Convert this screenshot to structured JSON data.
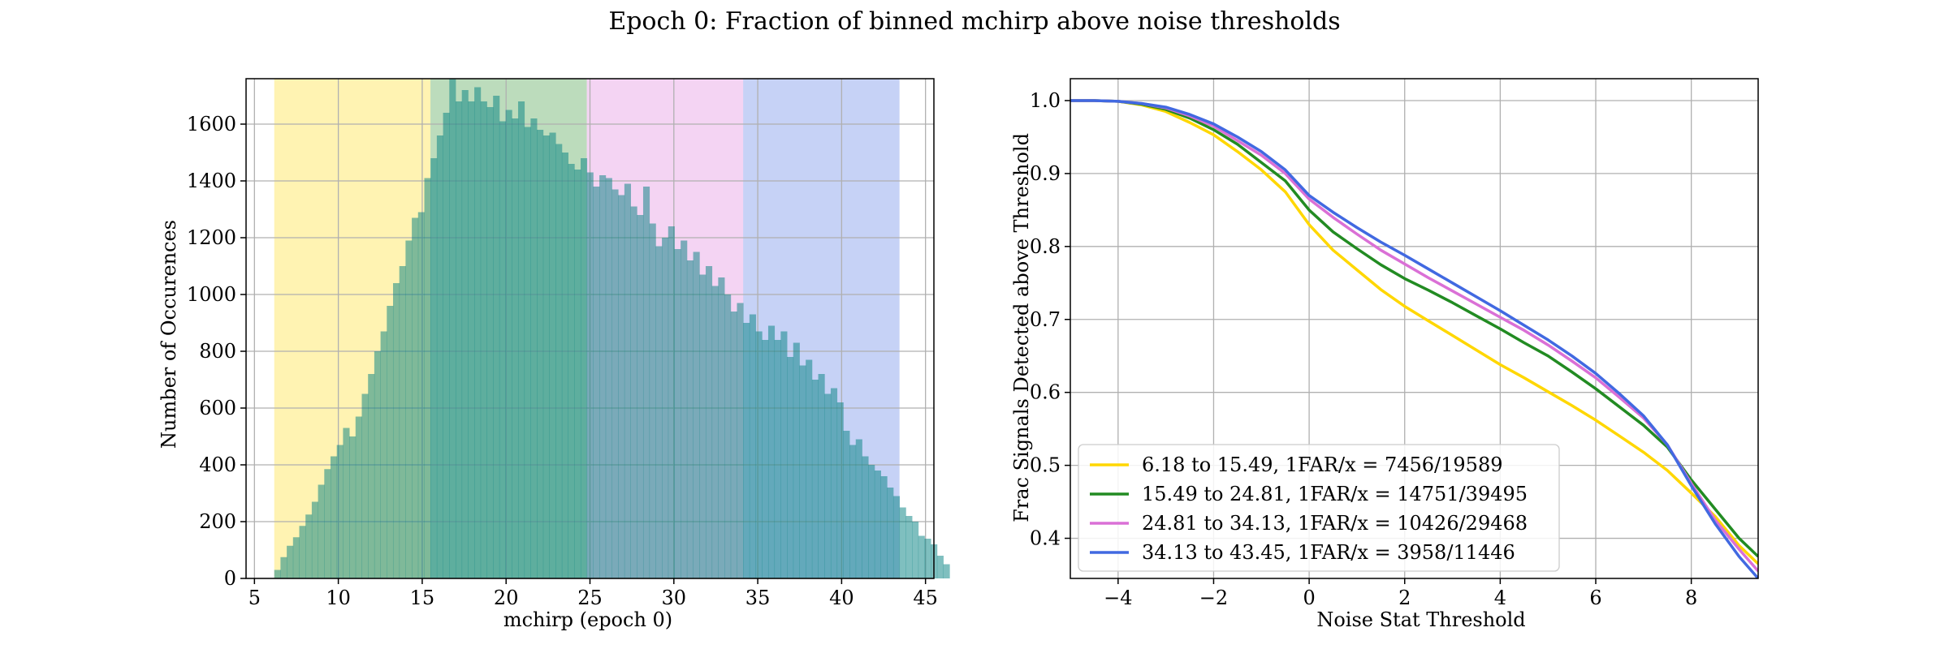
{
  "title": "Epoch 0: Fraction of binned mchirp above noise thresholds",
  "chart_data": [
    {
      "type": "bar",
      "xlabel": "mchirp (epoch 0)",
      "ylabel": "Number of Occurences",
      "xlim": [
        4.5,
        45.5
      ],
      "ylim": [
        0,
        1760
      ],
      "xticks": [
        5,
        10,
        15,
        20,
        25,
        30,
        35,
        40,
        45
      ],
      "yticks": [
        0,
        200,
        400,
        600,
        800,
        1000,
        1200,
        1400,
        1600
      ],
      "grid": true,
      "bin_width": 0.3727,
      "bin_start": 6.18,
      "bands": [
        {
          "from": 6.18,
          "to": 15.49,
          "color": "#ffd700"
        },
        {
          "from": 15.49,
          "to": 24.81,
          "color": "#228b22"
        },
        {
          "from": 24.81,
          "to": 34.13,
          "color": "#da70d6"
        },
        {
          "from": 34.13,
          "to": 43.45,
          "color": "#4169e1"
        }
      ],
      "bar_color": "#008080",
      "values": [
        30,
        75,
        115,
        145,
        185,
        225,
        270,
        330,
        385,
        430,
        470,
        530,
        500,
        570,
        650,
        720,
        800,
        870,
        960,
        1040,
        1100,
        1190,
        1270,
        1290,
        1410,
        1480,
        1560,
        1640,
        1760,
        1680,
        1720,
        1680,
        1730,
        1680,
        1660,
        1700,
        1610,
        1650,
        1620,
        1680,
        1590,
        1620,
        1580,
        1560,
        1570,
        1530,
        1500,
        1460,
        1440,
        1480,
        1430,
        1380,
        1420,
        1410,
        1370,
        1350,
        1390,
        1310,
        1280,
        1380,
        1250,
        1170,
        1200,
        1240,
        1160,
        1190,
        1120,
        1150,
        1070,
        1100,
        1030,
        1060,
        1000,
        940,
        970,
        900,
        930,
        870,
        840,
        890,
        840,
        870,
        780,
        830,
        750,
        770,
        700,
        720,
        650,
        670,
        620,
        520,
        470,
        490,
        430,
        400,
        380,
        360,
        320,
        290,
        250,
        220,
        200,
        150,
        140,
        120,
        80,
        50
      ]
    },
    {
      "type": "line",
      "xlabel": "Noise Stat Threshold",
      "ylabel": "Frac Signals Detected above Threshold",
      "xlim": [
        -5,
        9.4
      ],
      "ylim": [
        0.345,
        1.03
      ],
      "xticks": [
        -4,
        -2,
        0,
        2,
        4,
        6,
        8
      ],
      "xticklabels": [
        "−4",
        "−2",
        "0",
        "2",
        "4",
        "6",
        "8"
      ],
      "yticks": [
        0.4,
        0.5,
        0.6,
        0.7,
        0.8,
        0.9,
        1.0
      ],
      "yticklabels": [
        "0.4",
        "0.5",
        "0.6",
        "0.7",
        "0.8",
        "0.9",
        "1.0"
      ],
      "grid": true,
      "legend_position": "lower-left",
      "x": [
        -5,
        -4.5,
        -4,
        -3.5,
        -3,
        -2.5,
        -2,
        -1.5,
        -1,
        -0.5,
        0,
        0.5,
        1,
        1.5,
        2,
        2.5,
        3,
        3.5,
        4,
        4.5,
        5,
        5.5,
        6,
        6.5,
        7,
        7.5,
        8,
        8.5,
        9,
        9.4
      ],
      "series": [
        {
          "name": "6.18 to 15.49, 1FAR/x = 7456/19589",
          "color": "#ffd700",
          "values": [
            1.0,
            1.0,
            0.999,
            0.994,
            0.985,
            0.97,
            0.953,
            0.93,
            0.905,
            0.875,
            0.83,
            0.795,
            0.768,
            0.741,
            0.718,
            0.698,
            0.678,
            0.658,
            0.638,
            0.62,
            0.601,
            0.582,
            0.562,
            0.54,
            0.518,
            0.493,
            0.462,
            0.43,
            0.39,
            0.365
          ]
        },
        {
          "name": "15.49 to 24.81, 1FAR/x = 14751/39495",
          "color": "#228b22",
          "values": [
            1.0,
            1.0,
            0.999,
            0.995,
            0.988,
            0.976,
            0.96,
            0.94,
            0.915,
            0.89,
            0.85,
            0.82,
            0.797,
            0.775,
            0.756,
            0.74,
            0.723,
            0.705,
            0.687,
            0.668,
            0.65,
            0.628,
            0.605,
            0.58,
            0.555,
            0.525,
            0.48,
            0.44,
            0.4,
            0.375
          ]
        },
        {
          "name": "24.81 to 34.13, 1FAR/x = 10426/29468",
          "color": "#da70d6",
          "values": [
            1.0,
            1.0,
            0.999,
            0.996,
            0.99,
            0.979,
            0.965,
            0.945,
            0.925,
            0.9,
            0.865,
            0.84,
            0.817,
            0.795,
            0.776,
            0.757,
            0.739,
            0.721,
            0.703,
            0.685,
            0.665,
            0.643,
            0.62,
            0.593,
            0.565,
            0.528,
            0.475,
            0.425,
            0.385,
            0.355
          ]
        },
        {
          "name": "34.13 to 43.45, 1FAR/x = 3958/11446",
          "color": "#4169e1",
          "values": [
            1.0,
            1.0,
            0.999,
            0.996,
            0.991,
            0.981,
            0.968,
            0.95,
            0.93,
            0.905,
            0.87,
            0.847,
            0.826,
            0.806,
            0.788,
            0.769,
            0.75,
            0.731,
            0.712,
            0.692,
            0.672,
            0.65,
            0.626,
            0.598,
            0.568,
            0.528,
            0.472,
            0.42,
            0.375,
            0.345
          ]
        }
      ]
    }
  ]
}
